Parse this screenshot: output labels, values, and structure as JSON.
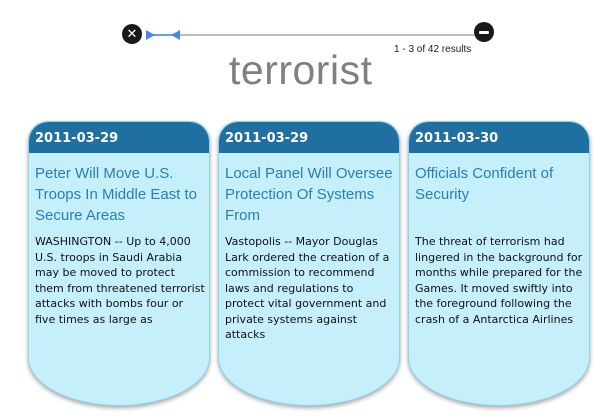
{
  "controls": {
    "close_glyph": "✕",
    "results_text": "1 - 3 of 42 results",
    "query": "terrorist",
    "slider_position": 0.1
  },
  "colors": {
    "card_header": "#1f6fa1",
    "card_background": "#c4effb",
    "headline": "#2a7fb6",
    "slider_handle": "#4a86e8"
  },
  "cards": [
    {
      "date": "2011-03-29",
      "headline": "Peter Will Move U.S. Troops In Middle East to Secure Areas",
      "body": "WASHINGTON -- Up to 4,000 U.S. troops in Saudi Arabia may be moved to protect them from threatened terrorist attacks with bombs four or five times as large as"
    },
    {
      "date": "2011-03-29",
      "headline": "Local Panel Will Oversee Protection Of Systems From",
      "body": "Vastopolis -- Mayor Douglas Lark ordered the creation of a commission to recommend laws and regulations to protect vital government and private systems against attacks"
    },
    {
      "date": "2011-03-30",
      "headline": "Officials Confident of Security",
      "body": "The threat of terrorism had lingered in the background for months while prepared for the Games. It moved swiftly into the foreground following the crash of a Antarctica Airlines"
    }
  ]
}
